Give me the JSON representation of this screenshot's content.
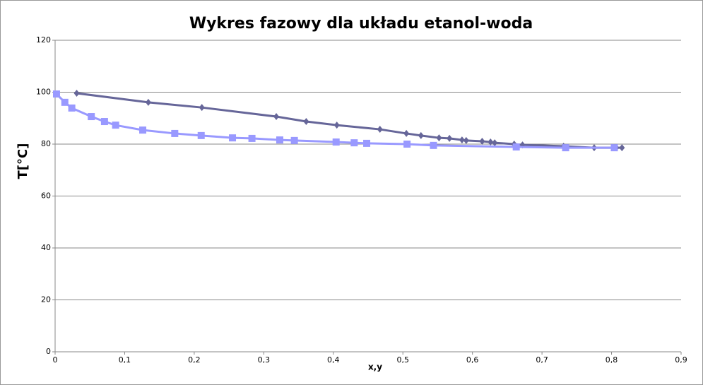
{
  "chart_data": {
    "type": "line",
    "title": "Wykres fazowy dla układu etanol-woda",
    "x_label": "x,y",
    "y_label": "T[°C]",
    "xlim": [
      0,
      0.9
    ],
    "ylim": [
      0,
      120
    ],
    "xticks": [
      0,
      {
        "value": 0.1,
        "label": "0,1"
      },
      {
        "value": 0.2,
        "label": "0,2"
      },
      {
        "value": 0.3,
        "label": "0,3"
      },
      {
        "value": 0.4,
        "label": "0,4"
      },
      {
        "value": 0.5,
        "label": "0,5"
      },
      {
        "value": 0.6,
        "label": "0,6"
      },
      {
        "value": 0.7,
        "label": "0,7"
      },
      {
        "value": 0.8,
        "label": "0,8"
      },
      {
        "value": 0.9,
        "label": "0,9"
      }
    ],
    "yticks": [
      0,
      20,
      40,
      60,
      80,
      100,
      120
    ],
    "grid": true,
    "series": [
      {
        "color": "#666699",
        "marker": "diamond",
        "x": [
          0.031,
          0.134,
          0.211,
          0.318,
          0.361,
          0.405,
          0.467,
          0.505,
          0.526,
          0.552,
          0.567,
          0.585,
          0.591,
          0.614,
          0.626,
          0.632,
          0.66,
          0.672,
          0.731,
          0.775,
          0.807,
          0.815
        ],
        "values": [
          99.6,
          96.1,
          94.1,
          90.6,
          88.7,
          87.3,
          85.7,
          84.1,
          83.3,
          82.4,
          82.2,
          81.6,
          81.4,
          81.1,
          80.8,
          80.5,
          80.0,
          79.7,
          79.2,
          78.6,
          78.6,
          78.6
        ]
      },
      {
        "color": "#9999ff",
        "marker": "square",
        "x": [
          0.002,
          0.014,
          0.024,
          0.052,
          0.071,
          0.087,
          0.126,
          0.172,
          0.21,
          0.255,
          0.283,
          0.323,
          0.344,
          0.404,
          0.43,
          0.448,
          0.506,
          0.544,
          0.663,
          0.734,
          0.804
        ],
        "values": [
          99.3,
          96.1,
          93.9,
          90.6,
          88.7,
          87.3,
          85.4,
          84.1,
          83.3,
          82.4,
          82.2,
          81.6,
          81.4,
          80.8,
          80.5,
          80.3,
          80.0,
          79.5,
          78.9,
          78.6,
          78.6
        ]
      }
    ]
  }
}
